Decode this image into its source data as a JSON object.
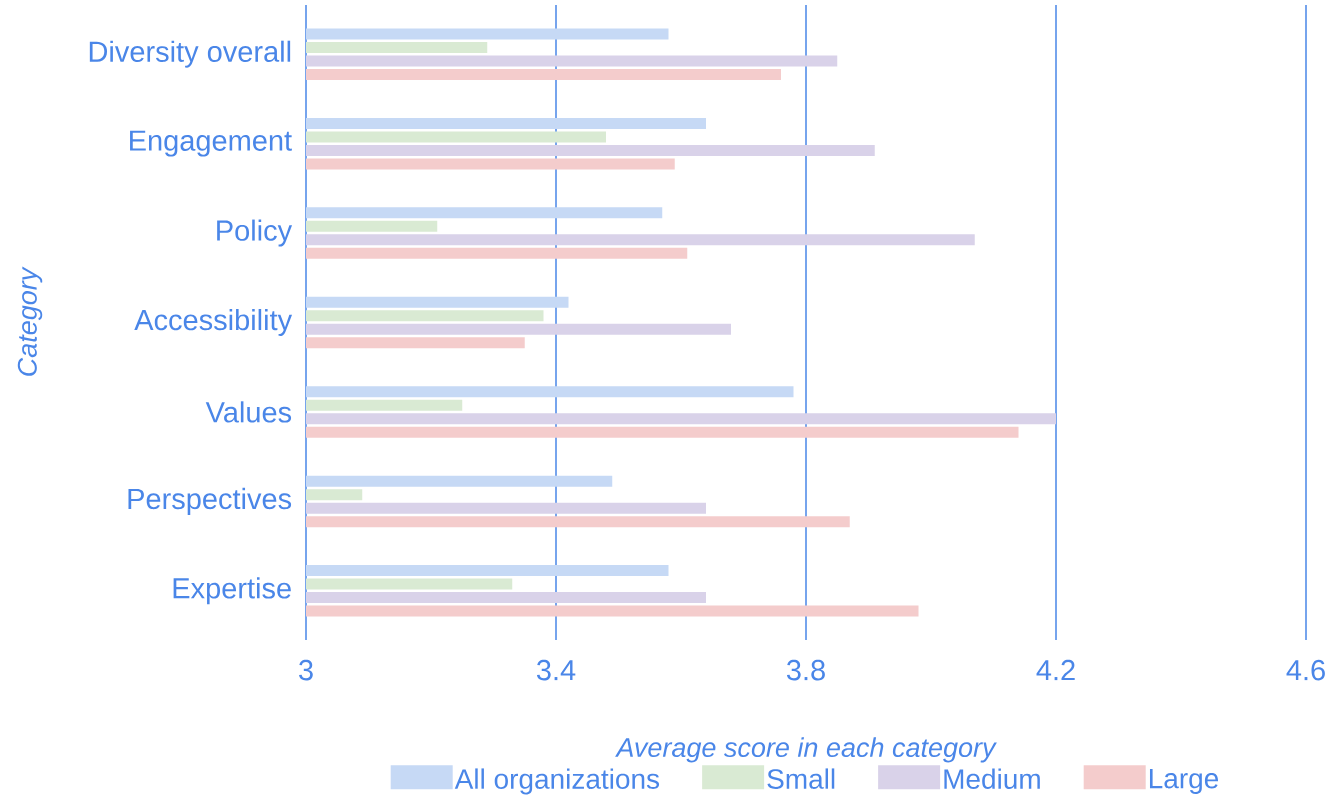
{
  "chart_data": {
    "type": "bar",
    "orientation": "horizontal",
    "xlabel": "Average score in each category",
    "ylabel": "Category",
    "categories": [
      "Diversity overall",
      "Engagement",
      "Policy",
      "Accessibility",
      "Values",
      "Perspectives",
      "Expertise"
    ],
    "series": [
      {
        "name": "All organizations",
        "color": "#c6d9f5",
        "values": [
          3.58,
          3.64,
          3.57,
          3.42,
          3.78,
          3.49,
          3.58
        ]
      },
      {
        "name": "Small",
        "color": "#d9ead3",
        "values": [
          3.29,
          3.48,
          3.21,
          3.38,
          3.25,
          3.09,
          3.33
        ]
      },
      {
        "name": "Medium",
        "color": "#d9d2e9",
        "values": [
          3.85,
          3.91,
          4.07,
          3.68,
          4.2,
          3.64,
          3.64
        ]
      },
      {
        "name": "Large",
        "color": "#f4cccc",
        "values": [
          3.76,
          3.59,
          3.61,
          3.35,
          4.14,
          3.87,
          3.98
        ]
      }
    ],
    "xlim": [
      3,
      4.6
    ],
    "xticks": [
      3,
      3.4,
      3.8,
      4.2,
      4.6
    ],
    "grid": "x",
    "legend": "bottom"
  }
}
